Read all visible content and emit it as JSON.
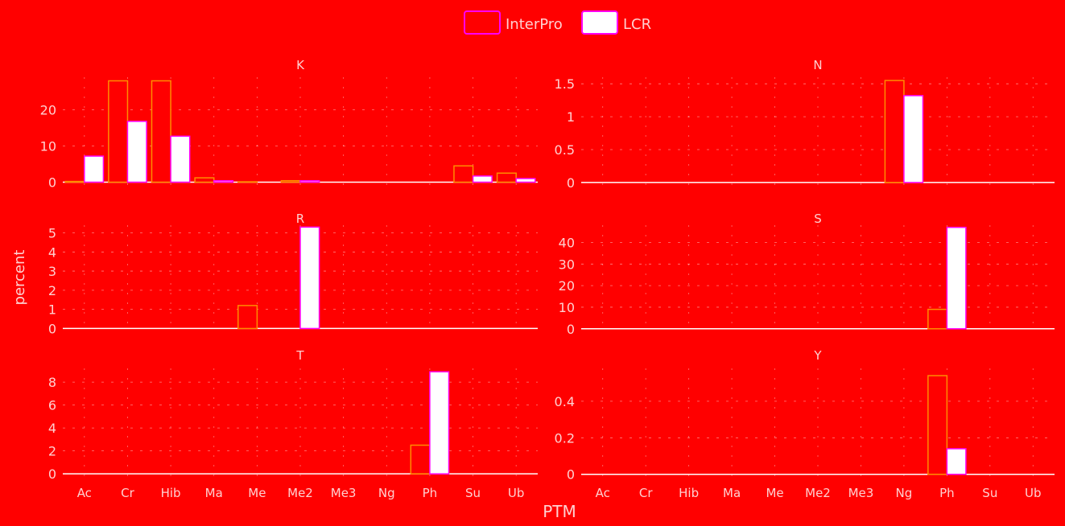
{
  "colors": {
    "background": "#ff0000",
    "interpro_fill": "#ff0000",
    "interpro_stroke": "#ff8c00",
    "lcr_fill": "#ffffff",
    "lcr_stroke": "#ff00ff",
    "gridline": "#ffffff",
    "text": "#ffd0d0"
  },
  "chart_data": {
    "type": "bar",
    "layout": "facet grid 3 rows x 2 columns",
    "xlabel": "PTM",
    "ylabel": "percent",
    "legend": {
      "position": "top",
      "entries": [
        "InterPro",
        "LCR"
      ]
    },
    "categories": [
      "Ac",
      "Cr",
      "Hib",
      "Ma",
      "Me",
      "Me2",
      "Me3",
      "Ng",
      "Ph",
      "Su",
      "Ub"
    ],
    "facets": [
      {
        "title": "K",
        "yticks": [
          0,
          10,
          20
        ],
        "ylim": [
          -1,
          29
        ],
        "series": [
          {
            "name": "InterPro",
            "values": [
              0.2,
              28,
              28,
              1.2,
              0.1,
              0.4,
              0,
              0,
              0,
              4.5,
              2.5
            ]
          },
          {
            "name": "LCR",
            "values": [
              7.2,
              16.8,
              12.7,
              0.4,
              0,
              0.4,
              0,
              0,
              0,
              1.7,
              1.0
            ]
          }
        ]
      },
      {
        "title": "N",
        "yticks": [
          0.0,
          0.5,
          1.0,
          1.5
        ],
        "ylim": [
          -0.05,
          1.6
        ],
        "series": [
          {
            "name": "InterPro",
            "values": [
              0,
              0,
              0,
              0,
              0,
              0,
              0,
              1.55,
              0,
              0,
              0
            ]
          },
          {
            "name": "LCR",
            "values": [
              0,
              0,
              0,
              0,
              0,
              0,
              0,
              1.32,
              0,
              0,
              0
            ]
          }
        ]
      },
      {
        "title": "R",
        "yticks": [
          0,
          1,
          2,
          3,
          4,
          5
        ],
        "ylim": [
          -0.15,
          5.4
        ],
        "series": [
          {
            "name": "InterPro",
            "values": [
              0,
              0,
              0,
              0,
              1.2,
              0,
              0,
              0,
              0,
              0,
              0
            ]
          },
          {
            "name": "LCR",
            "values": [
              0,
              0,
              0,
              0,
              0,
              5.3,
              0,
              0,
              0,
              0,
              0
            ]
          }
        ]
      },
      {
        "title": "S",
        "yticks": [
          0,
          10,
          20,
          30,
          40
        ],
        "ylim": [
          -1.2,
          48
        ],
        "series": [
          {
            "name": "InterPro",
            "values": [
              0,
              0,
              0,
              0,
              0,
              0,
              0,
              0,
              9,
              0,
              0
            ]
          },
          {
            "name": "LCR",
            "values": [
              0,
              0,
              0,
              0,
              0,
              0,
              0,
              0,
              47,
              0,
              0
            ]
          }
        ]
      },
      {
        "title": "T",
        "yticks": [
          0,
          2,
          4,
          6,
          8
        ],
        "ylim": [
          -0.2,
          9.2
        ],
        "series": [
          {
            "name": "InterPro",
            "values": [
              0,
              0,
              0,
              0,
              0,
              0,
              0,
              0,
              2.5,
              0,
              0
            ]
          },
          {
            "name": "LCR",
            "values": [
              0,
              0,
              0,
              0,
              0,
              0,
              0,
              0,
              8.9,
              0,
              0
            ]
          }
        ]
      },
      {
        "title": "Y",
        "yticks": [
          0.0,
          0.2,
          0.4
        ],
        "ylim": [
          -0.01,
          0.58
        ],
        "series": [
          {
            "name": "InterPro",
            "values": [
              0,
              0,
              0,
              0,
              0,
              0,
              0,
              0,
              0.54,
              0,
              0
            ]
          },
          {
            "name": "LCR",
            "values": [
              0,
              0,
              0,
              0,
              0,
              0,
              0,
              0,
              0.14,
              0,
              0
            ]
          }
        ]
      }
    ]
  }
}
